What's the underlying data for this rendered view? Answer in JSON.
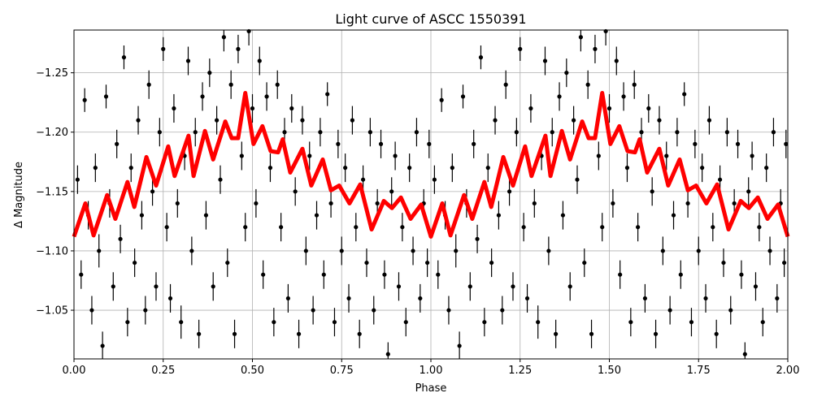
{
  "chart_data": {
    "type": "scatter",
    "title": "Light curve of ASCC 1550391",
    "xlabel": "Phase",
    "ylabel": "Δ Magnitude",
    "xlim": [
      0,
      2
    ],
    "ylim": [
      -1.009,
      -1.286
    ],
    "y_inverted": true,
    "grid": true,
    "xticks": [
      "0.00",
      "0.25",
      "0.50",
      "0.75",
      "1.00",
      "1.25",
      "1.50",
      "1.75",
      "2.00"
    ],
    "xtick_values": [
      0,
      0.25,
      0.5,
      0.75,
      1,
      1.25,
      1.5,
      1.75,
      2
    ],
    "yticks": [
      "−1.25",
      "−1.20",
      "−1.15",
      "−1.10",
      "−1.05"
    ],
    "ytick_values": [
      -1.25,
      -1.2,
      -1.15,
      -1.1,
      -1.05
    ],
    "phase_cycles_shown": 2,
    "colors": {
      "points": "#000000",
      "model": "#ff0000",
      "grid": "#b0b0b0"
    },
    "model_curve": {
      "phase": [
        0,
        0.032,
        0.055,
        0.093,
        0.116,
        0.15,
        0.169,
        0.203,
        0.23,
        0.264,
        0.282,
        0.321,
        0.335,
        0.367,
        0.39,
        0.424,
        0.442,
        0.46,
        0.48,
        0.503,
        0.528,
        0.551,
        0.572,
        0.585,
        0.606,
        0.64,
        0.665,
        0.697,
        0.72,
        0.743,
        0.772,
        0.802,
        0.834,
        0.868,
        0.891,
        0.916,
        0.943,
        0.973,
        1.0
      ],
      "mag": [
        -1.112,
        -1.14,
        -1.113,
        -1.147,
        -1.127,
        -1.158,
        -1.137,
        -1.179,
        -1.155,
        -1.188,
        -1.163,
        -1.197,
        -1.163,
        -1.201,
        -1.177,
        -1.209,
        -1.195,
        -1.195,
        -1.233,
        -1.19,
        -1.205,
        -1.184,
        -1.183,
        -1.194,
        -1.166,
        -1.186,
        -1.155,
        -1.177,
        -1.151,
        -1.155,
        -1.14,
        -1.156,
        -1.118,
        -1.142,
        -1.136,
        -1.145,
        -1.127,
        -1.139,
        -1.112
      ]
    },
    "points": [
      [
        0.01,
        -1.16,
        0.012
      ],
      [
        0.02,
        -1.08,
        0.012
      ],
      [
        0.03,
        -1.227,
        0.01
      ],
      [
        0.04,
        -1.13,
        0.012
      ],
      [
        0.05,
        -1.05,
        0.012
      ],
      [
        0.06,
        -1.17,
        0.012
      ],
      [
        0.07,
        -1.1,
        0.014
      ],
      [
        0.08,
        -1.02,
        0.012
      ],
      [
        0.09,
        -1.23,
        0.01
      ],
      [
        0.1,
        -1.14,
        0.012
      ],
      [
        0.11,
        -1.07,
        0.012
      ],
      [
        0.12,
        -1.19,
        0.012
      ],
      [
        0.13,
        -1.11,
        0.012
      ],
      [
        0.14,
        -1.263,
        0.01
      ],
      [
        0.15,
        -1.04,
        0.012
      ],
      [
        0.16,
        -1.17,
        0.012
      ],
      [
        0.17,
        -1.09,
        0.012
      ],
      [
        0.18,
        -1.21,
        0.012
      ],
      [
        0.19,
        -1.13,
        0.012
      ],
      [
        0.2,
        -1.05,
        0.012
      ],
      [
        0.21,
        -1.24,
        0.012
      ],
      [
        0.22,
        -1.15,
        0.012
      ],
      [
        0.23,
        -1.07,
        0.012
      ],
      [
        0.24,
        -1.2,
        0.012
      ],
      [
        0.25,
        -1.27,
        0.01
      ],
      [
        0.26,
        -1.12,
        0.012
      ],
      [
        0.27,
        -1.06,
        0.012
      ],
      [
        0.28,
        -1.22,
        0.012
      ],
      [
        0.29,
        -1.14,
        0.012
      ],
      [
        0.3,
        -1.04,
        0.014
      ],
      [
        0.31,
        -1.18,
        0.012
      ],
      [
        0.32,
        -1.26,
        0.012
      ],
      [
        0.33,
        -1.1,
        0.012
      ],
      [
        0.34,
        -1.2,
        0.012
      ],
      [
        0.35,
        -1.03,
        0.012
      ],
      [
        0.36,
        -1.23,
        0.012
      ],
      [
        0.37,
        -1.13,
        0.012
      ],
      [
        0.38,
        -1.25,
        0.012
      ],
      [
        0.39,
        -1.07,
        0.012
      ],
      [
        0.4,
        -1.21,
        0.012
      ],
      [
        0.41,
        -1.16,
        0.012
      ],
      [
        0.42,
        -1.28,
        0.012
      ],
      [
        0.43,
        -1.09,
        0.012
      ],
      [
        0.44,
        -1.24,
        0.012
      ],
      [
        0.45,
        -1.03,
        0.012
      ],
      [
        0.46,
        -1.27,
        0.012
      ],
      [
        0.47,
        -1.18,
        0.012
      ],
      [
        0.48,
        -1.12,
        0.012
      ],
      [
        0.49,
        -1.285,
        0.012
      ],
      [
        0.5,
        -1.22,
        0.012
      ],
      [
        0.51,
        -1.14,
        0.012
      ],
      [
        0.52,
        -1.26,
        0.012
      ],
      [
        0.53,
        -1.08,
        0.012
      ],
      [
        0.54,
        -1.23,
        0.012
      ],
      [
        0.55,
        -1.17,
        0.012
      ],
      [
        0.56,
        -1.04,
        0.012
      ],
      [
        0.57,
        -1.24,
        0.012
      ],
      [
        0.58,
        -1.12,
        0.012
      ],
      [
        0.59,
        -1.2,
        0.012
      ],
      [
        0.6,
        -1.06,
        0.012
      ],
      [
        0.61,
        -1.22,
        0.012
      ],
      [
        0.62,
        -1.15,
        0.012
      ],
      [
        0.63,
        -1.03,
        0.012
      ],
      [
        0.64,
        -1.21,
        0.012
      ],
      [
        0.65,
        -1.1,
        0.012
      ],
      [
        0.66,
        -1.18,
        0.012
      ],
      [
        0.67,
        -1.05,
        0.012
      ],
      [
        0.68,
        -1.13,
        0.012
      ],
      [
        0.69,
        -1.2,
        0.012
      ],
      [
        0.7,
        -1.08,
        0.012
      ],
      [
        0.71,
        -1.232,
        0.01
      ],
      [
        0.72,
        -1.14,
        0.012
      ],
      [
        0.73,
        -1.04,
        0.012
      ],
      [
        0.74,
        -1.19,
        0.012
      ],
      [
        0.75,
        -1.1,
        0.012
      ],
      [
        0.76,
        -1.17,
        0.012
      ],
      [
        0.77,
        -1.06,
        0.012
      ],
      [
        0.78,
        -1.21,
        0.012
      ],
      [
        0.79,
        -1.12,
        0.012
      ],
      [
        0.8,
        -1.03,
        0.012
      ],
      [
        0.81,
        -1.16,
        0.012
      ],
      [
        0.82,
        -1.09,
        0.012
      ],
      [
        0.83,
        -1.2,
        0.012
      ],
      [
        0.84,
        -1.05,
        0.012
      ],
      [
        0.85,
        -1.14,
        0.012
      ],
      [
        0.86,
        -1.19,
        0.012
      ],
      [
        0.87,
        -1.08,
        0.012
      ],
      [
        0.88,
        -1.013,
        0.01
      ],
      [
        0.89,
        -1.15,
        0.012
      ],
      [
        0.9,
        -1.18,
        0.012
      ],
      [
        0.91,
        -1.07,
        0.012
      ],
      [
        0.92,
        -1.12,
        0.012
      ],
      [
        0.93,
        -1.04,
        0.012
      ],
      [
        0.94,
        -1.17,
        0.012
      ],
      [
        0.95,
        -1.1,
        0.012
      ],
      [
        0.96,
        -1.2,
        0.012
      ],
      [
        0.97,
        -1.06,
        0.012
      ],
      [
        0.98,
        -1.14,
        0.012
      ],
      [
        0.99,
        -1.09,
        0.012
      ],
      [
        0.995,
        -1.19,
        0.012
      ]
    ]
  }
}
